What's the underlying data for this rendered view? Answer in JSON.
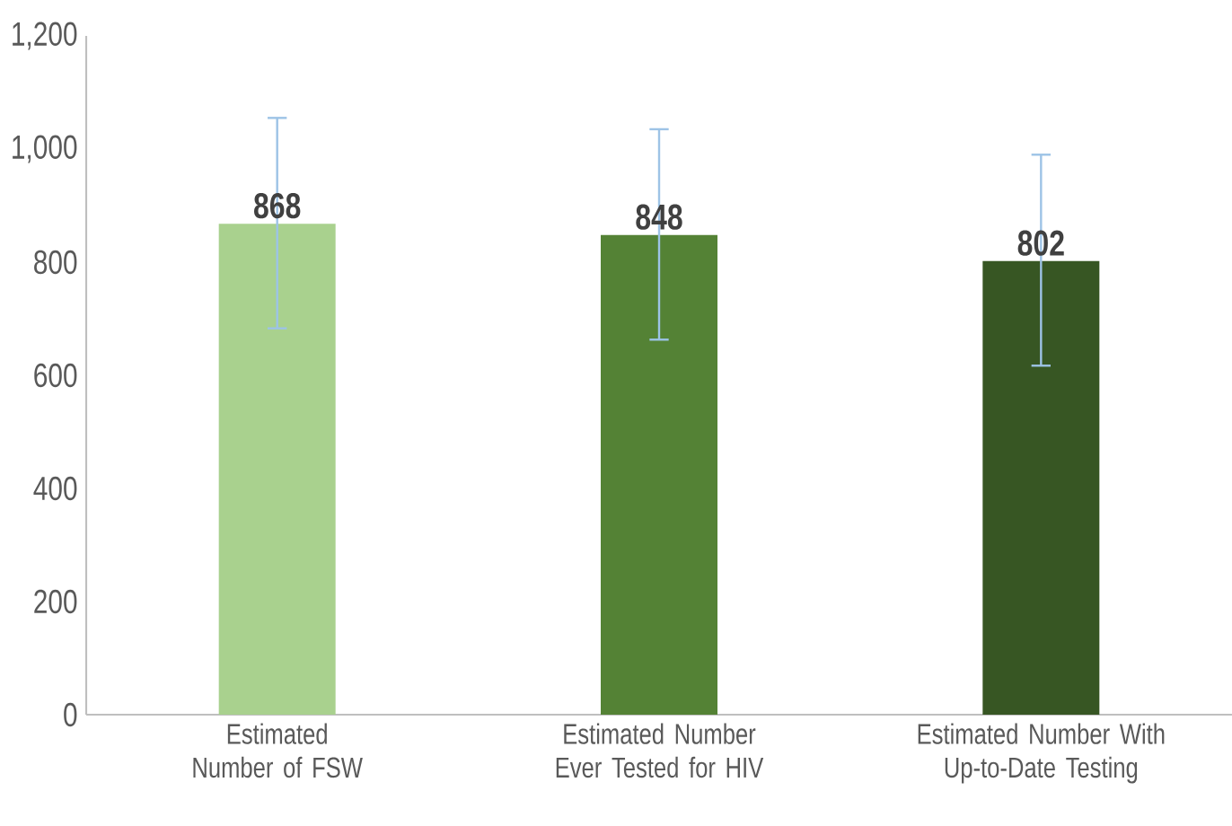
{
  "chart_data": {
    "type": "bar",
    "categories": [
      "Estimated Number of FSW",
      "Estimated Number Ever Tested for HIV",
      "Estimated Number With Up-to-Date Testing"
    ],
    "values": [
      868,
      848,
      802
    ],
    "colors": [
      "#a9d18e",
      "#548235",
      "#375623"
    ],
    "errors": [
      [
        683,
        1055
      ],
      [
        663,
        1035
      ],
      [
        617,
        990
      ]
    ],
    "data_labels": true,
    "ylim": [
      0,
      1200
    ],
    "yticks": [
      0,
      200,
      400,
      600,
      800,
      {
        "value": 1000,
        "label": "1,000"
      },
      {
        "value": 1200,
        "label": "1,200"
      }
    ],
    "grid": false
  }
}
